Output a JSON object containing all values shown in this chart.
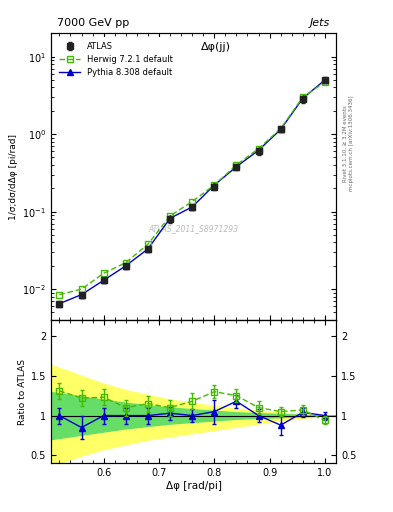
{
  "title_top": "7000 GeV pp",
  "title_right": "Jets",
  "title_annotation": "Δφ(jj)",
  "watermark": "ATLAS_2011_S8971293",
  "ylabel_main": "1/σ;dσ/dΔφ [pi/rad]",
  "ylabel_ratio": "Ratio to ATLAS",
  "xlabel": "Δφ [rad/pi]",
  "right_label": "Rivet 3.1.10, ≥ 3.2M events",
  "right_label2": "mcplots.cern.ch [arXiv:1306.3436]",
  "x_data": [
    0.52,
    0.56,
    0.6,
    0.64,
    0.68,
    0.72,
    0.76,
    0.8,
    0.84,
    0.88,
    0.92,
    0.96,
    1.0
  ],
  "atlas_y": [
    0.0065,
    0.0085,
    0.013,
    0.02,
    0.033,
    0.08,
    0.115,
    0.21,
    0.38,
    0.6,
    1.15,
    2.8,
    5.0
  ],
  "atlas_yerr": [
    0.0005,
    0.0008,
    0.001,
    0.002,
    0.003,
    0.008,
    0.01,
    0.02,
    0.03,
    0.06,
    0.1,
    0.3,
    0.5
  ],
  "herwig_y": [
    0.0085,
    0.01,
    0.016,
    0.022,
    0.038,
    0.088,
    0.135,
    0.22,
    0.4,
    0.65,
    1.18,
    3.0,
    4.7
  ],
  "pythia_y": [
    0.0065,
    0.0085,
    0.013,
    0.02,
    0.033,
    0.082,
    0.115,
    0.22,
    0.38,
    0.62,
    1.15,
    2.9,
    5.0
  ],
  "atlas_color": "#222222",
  "herwig_color": "#44bb00",
  "pythia_color": "#0000cc",
  "x_band": [
    0.5,
    0.52,
    0.56,
    0.6,
    0.64,
    0.68,
    0.72,
    0.76,
    0.8,
    0.84,
    0.88,
    0.92,
    0.96,
    1.0,
    1.02
  ],
  "y_yellow_hi": [
    1.65,
    1.6,
    1.5,
    1.4,
    1.32,
    1.26,
    1.2,
    1.16,
    1.12,
    1.09,
    1.06,
    1.04,
    1.02,
    1.0,
    1.0
  ],
  "y_yellow_lo": [
    0.35,
    0.4,
    0.5,
    0.58,
    0.64,
    0.7,
    0.74,
    0.78,
    0.82,
    0.86,
    0.9,
    0.94,
    0.97,
    1.0,
    1.0
  ],
  "y_green_hi": [
    1.3,
    1.28,
    1.24,
    1.2,
    1.16,
    1.13,
    1.1,
    1.08,
    1.06,
    1.04,
    1.03,
    1.02,
    1.01,
    1.0,
    1.0
  ],
  "y_green_lo": [
    0.7,
    0.72,
    0.76,
    0.8,
    0.84,
    0.87,
    0.9,
    0.92,
    0.94,
    0.96,
    0.97,
    0.98,
    0.99,
    1.0,
    1.0
  ],
  "ratio_herwig": [
    1.31,
    1.22,
    1.23,
    1.1,
    1.15,
    1.1,
    1.18,
    1.3,
    1.25,
    1.1,
    1.05,
    1.07,
    0.94
  ],
  "ratio_herwig_err": [
    0.1,
    0.1,
    0.1,
    0.1,
    0.1,
    0.1,
    0.1,
    0.08,
    0.08,
    0.08,
    0.06,
    0.06,
    0.05
  ],
  "ratio_pythia": [
    1.0,
    0.85,
    1.0,
    1.0,
    1.0,
    1.03,
    1.0,
    1.05,
    1.18,
    1.0,
    0.88,
    1.04,
    1.0
  ],
  "ratio_pythia_err": [
    0.1,
    0.15,
    0.1,
    0.1,
    0.1,
    0.08,
    0.08,
    0.15,
    0.08,
    0.08,
    0.12,
    0.06,
    0.05
  ],
  "xlim": [
    0.505,
    1.02
  ],
  "ylim_main": [
    0.004,
    20
  ],
  "ylim_ratio": [
    0.4,
    2.2
  ]
}
